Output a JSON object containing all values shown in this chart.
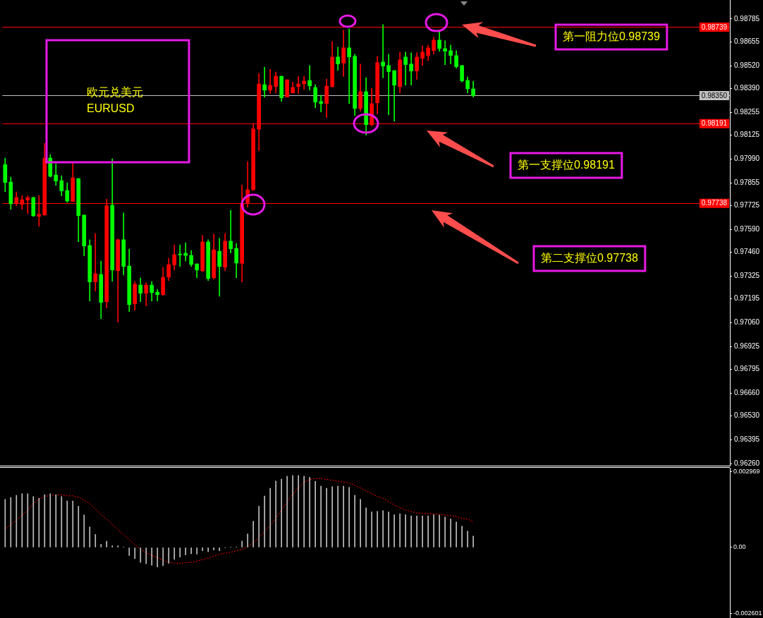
{
  "chart_data": [
    {
      "type": "candlestick",
      "categories": [
        null,
        null,
        null,
        null,
        null,
        null,
        null,
        null,
        null,
        null,
        null,
        null,
        null,
        null,
        null,
        null,
        null,
        null,
        null,
        null,
        null,
        null,
        null,
        null,
        null,
        null,
        null,
        null,
        null,
        null,
        null,
        null,
        null,
        null,
        null,
        null,
        null,
        null,
        null,
        null,
        null,
        null,
        null,
        null,
        null,
        null,
        null,
        null,
        null,
        null,
        null,
        null,
        null,
        null,
        null,
        null,
        null,
        null,
        null,
        null,
        null,
        null,
        null,
        null,
        null,
        null,
        null,
        null,
        null,
        null,
        null,
        null,
        null,
        null,
        null,
        null,
        null,
        null,
        null,
        null,
        null,
        null,
        null,
        null,
        null,
        null,
        null,
        null,
        null,
        null,
        null,
        null,
        null,
        null,
        null,
        null,
        null,
        null,
        null,
        null,
        null,
        null,
        null,
        null,
        null,
        null,
        null,
        null,
        null,
        null,
        null,
        null,
        null,
        null,
        null,
        null,
        null,
        null,
        null,
        null,
        null,
        null,
        null,
        null,
        null,
        null,
        null,
        null,
        null
      ],
      "ohlc": [
        [
          0.97958,
          0.97995,
          0.97804,
          0.97856
        ],
        [
          0.97859,
          0.97887,
          0.97704,
          0.97735
        ],
        [
          0.97738,
          0.97803,
          0.97724,
          0.97771
        ],
        [
          0.97732,
          0.97782,
          0.97704,
          0.97759
        ],
        [
          0.97756,
          0.97782,
          0.9768,
          0.97771
        ],
        [
          0.97771,
          0.97774,
          0.97663,
          0.97667
        ],
        [
          0.97664,
          0.97782,
          0.97608,
          0.97675
        ],
        [
          0.97671,
          0.98078,
          0.97671,
          0.97995
        ],
        [
          0.97995,
          0.98015,
          0.97887,
          0.97891
        ],
        [
          0.97899,
          0.97963,
          0.9784,
          0.97864
        ],
        [
          0.97867,
          0.97895,
          0.9778,
          0.97808
        ],
        [
          0.97811,
          0.97855,
          0.97744,
          0.97751
        ],
        [
          0.97748,
          0.97967,
          0.97748,
          0.97883
        ],
        [
          0.97879,
          0.97879,
          0.9752,
          0.97668
        ],
        [
          0.97671,
          0.97671,
          0.9744,
          0.97496
        ],
        [
          0.97498,
          0.97531,
          0.97183,
          0.97291
        ],
        [
          0.97291,
          0.97567,
          0.97239,
          0.97338
        ],
        [
          0.97334,
          0.9741,
          0.97083,
          0.97175
        ],
        [
          0.97179,
          0.97763,
          0.97143,
          0.97723
        ],
        [
          0.97727,
          0.97991,
          0.97295,
          0.97359
        ],
        [
          0.97355,
          0.97535,
          0.97063,
          0.97531
        ],
        [
          0.97531,
          0.97683,
          0.97331,
          0.97379
        ],
        [
          0.97382,
          0.97478,
          0.97123,
          0.97163
        ],
        [
          0.97167,
          0.97294,
          0.97131,
          0.97278
        ],
        [
          0.97274,
          0.97314,
          0.97179,
          0.97227
        ],
        [
          0.97227,
          0.97286,
          0.97155,
          0.97274
        ],
        [
          0.97274,
          0.97294,
          0.97183,
          0.97231
        ],
        [
          0.97234,
          0.9725,
          0.97183,
          0.97219
        ],
        [
          0.97219,
          0.97374,
          0.97215,
          0.97318
        ],
        [
          0.97319,
          0.97426,
          0.97299,
          0.9739
        ],
        [
          0.97387,
          0.97502,
          0.97359,
          0.97446
        ],
        [
          0.9745,
          0.97502,
          0.97379,
          0.97446
        ],
        [
          0.97454,
          0.97514,
          0.9741,
          0.97442
        ],
        [
          0.97442,
          0.9747,
          0.97379,
          0.97391
        ],
        [
          0.97394,
          0.97394,
          0.97315,
          0.97359
        ],
        [
          0.97354,
          0.97555,
          0.9735,
          0.97519
        ],
        [
          0.97519,
          0.97531,
          0.97299,
          0.97311
        ],
        [
          0.97315,
          0.97563,
          0.97307,
          0.97474
        ],
        [
          0.97466,
          0.97539,
          0.9721,
          0.97379
        ],
        [
          0.97375,
          0.97567,
          0.97355,
          0.97523
        ],
        [
          0.97523,
          0.97699,
          0.97456,
          0.9748
        ],
        [
          0.97482,
          0.9751,
          0.97315,
          0.97399
        ],
        [
          0.97397,
          0.97843,
          0.97291,
          0.97738
        ],
        [
          0.97742,
          0.97975,
          0.97716,
          0.97815
        ],
        [
          0.97815,
          0.98192,
          0.97811,
          0.98161
        ],
        [
          0.98159,
          0.98476,
          0.98037,
          0.98416
        ],
        [
          0.98412,
          0.98512,
          0.98341,
          0.98381
        ],
        [
          0.98381,
          0.985,
          0.98361,
          0.98408
        ],
        [
          0.98401,
          0.98484,
          0.98365,
          0.9846
        ],
        [
          0.9846,
          0.9846,
          0.98317,
          0.98337
        ],
        [
          0.98341,
          0.9844,
          0.98341,
          0.9844
        ],
        [
          0.98365,
          0.98426,
          0.98365,
          0.98396
        ],
        [
          0.98401,
          0.98458,
          0.98361,
          0.98416
        ],
        [
          0.98417,
          0.9846,
          0.98385,
          0.98432
        ],
        [
          0.98436,
          0.98521,
          0.98381,
          0.98405
        ],
        [
          0.98396,
          0.98412,
          0.98281,
          0.98313
        ],
        [
          0.98316,
          0.98352,
          0.98257,
          0.98305
        ],
        [
          0.98305,
          0.98444,
          0.98225,
          0.98404
        ],
        [
          0.98401,
          0.98657,
          0.98397,
          0.98569
        ],
        [
          0.98569,
          0.98625,
          0.98494,
          0.9853
        ],
        [
          0.98534,
          0.98721,
          0.98458,
          0.98621
        ],
        [
          0.98621,
          0.98729,
          0.98305,
          0.9857
        ],
        [
          0.98573,
          0.98585,
          0.98237,
          0.98277
        ],
        [
          0.98277,
          0.98529,
          0.98261,
          0.98372
        ],
        [
          0.98372,
          0.98452,
          0.98125,
          0.98185
        ],
        [
          0.98185,
          0.98392,
          0.98177,
          0.98304
        ],
        [
          0.98309,
          0.98573,
          0.98245,
          0.98537
        ],
        [
          0.98541,
          0.98753,
          0.9845,
          0.98518
        ],
        [
          0.98521,
          0.98585,
          0.98241,
          0.98486
        ],
        [
          0.98492,
          0.98492,
          0.98205,
          0.98409
        ],
        [
          0.98401,
          0.98597,
          0.98365,
          0.98553
        ],
        [
          0.98569,
          0.98597,
          0.98409,
          0.98526
        ],
        [
          0.98529,
          0.98593,
          0.98409,
          0.9849
        ],
        [
          0.9849,
          0.98593,
          0.98442,
          0.98569
        ],
        [
          0.98562,
          0.98633,
          0.98522,
          0.98597
        ],
        [
          0.98578,
          0.98637,
          0.9855,
          0.98621
        ],
        [
          0.98606,
          0.98681,
          0.98586,
          0.98665
        ],
        [
          0.98665,
          0.98713,
          0.98602,
          0.98618
        ],
        [
          0.98617,
          0.98661,
          0.98526,
          0.98602
        ],
        [
          0.98605,
          0.98637,
          0.9853,
          0.98578
        ],
        [
          0.98577,
          0.98605,
          0.98506,
          0.98514
        ],
        [
          0.98521,
          0.98521,
          0.98426,
          0.98434
        ],
        [
          0.98436,
          0.98456,
          0.98365,
          0.98389
        ],
        [
          0.98388,
          0.98432,
          0.98341,
          0.9835
        ],
        null,
        null,
        null,
        null,
        null,
        null,
        null,
        null,
        null,
        null,
        null,
        null,
        null,
        null,
        null,
        null,
        null,
        null,
        null,
        null,
        null,
        null,
        null,
        null,
        null,
        null,
        null,
        null,
        null,
        null,
        null,
        null,
        null,
        null,
        null,
        null,
        null,
        null,
        null,
        null,
        null,
        null,
        null,
        null,
        null
      ],
      "colors": [
        "#00ff00",
        "#00ff00",
        "#ff0000",
        "#ff0000",
        "#ff0000",
        "#00ff00",
        "#ff0000",
        "#ff0000",
        "#00ff00",
        "#00ff00",
        "#00ff00",
        "#00ff00",
        "#ff0000",
        "#00ff00",
        "#00ff00",
        "#00ff00",
        "#ff0000",
        "#00ff00",
        "#ff0000",
        "#00ff00",
        "#ff0000",
        "#00ff00",
        "#00ff00",
        "#ff0000",
        "#00ff00",
        "#ff0000",
        "#00ff00",
        "#00ff00",
        "#ff0000",
        "#ff0000",
        "#ff0000",
        "#00ff00",
        "#00ff00",
        "#00ff00",
        "#00ff00",
        "#ff0000",
        "#00ff00",
        "#ff0000",
        "#00ff00",
        "#ff0000",
        "#00ff00",
        "#00ff00",
        "#ff0000",
        "#ff0000",
        "#ff0000",
        "#ff0000",
        "#00ff00",
        "#ff0000",
        "#ff0000",
        "#00ff00",
        "#ff0000",
        "#ff0000",
        "#ff0000",
        "#ff0000",
        "#00ff00",
        "#00ff00",
        "#00ff00",
        "#ff0000",
        "#ff0000",
        "#00ff00",
        "#ff0000",
        "#00ff00",
        "#00ff00",
        "#ff0000",
        "#00ff00",
        "#ff0000",
        "#ff0000",
        "#00ff00",
        "#00ff00",
        "#00ff00",
        "#ff0000",
        "#00ff00",
        "#00ff00",
        "#ff0000",
        "#ff0000",
        "#ff0000",
        "#ff0000",
        "#00ff00",
        "#00ff00",
        "#00ff00",
        "#00ff00",
        "#00ff00",
        "#00ff00",
        "#00ff00",
        null,
        null,
        null,
        null,
        null,
        null,
        null,
        null,
        null,
        null,
        null,
        null,
        null,
        null,
        null,
        null,
        null,
        null,
        null,
        null,
        null,
        null,
        null,
        null,
        null,
        null,
        null,
        null,
        null,
        null,
        null,
        null,
        null,
        null,
        null,
        null,
        null,
        null,
        null,
        null,
        null,
        null,
        null,
        null,
        null
      ],
      "ylim": [
        0.96248,
        0.98893
      ],
      "yticks": [
        0.98785,
        0.98655,
        {
          "value": 0.9852,
          "label": "0.98520"
        },
        {
          "value": 0.9839,
          "label": "0.98390"
        },
        0.98255,
        0.98125,
        {
          "value": 0.9799,
          "label": "0.97990"
        },
        0.97855,
        0.97725,
        {
          "value": 0.9759,
          "label": "0.97590"
        },
        {
          "value": 0.9746,
          "label": "0.97460"
        },
        0.97325,
        0.97195,
        {
          "value": 0.9706,
          "label": "0.97060"
        },
        0.96925,
        0.96795,
        {
          "value": 0.9666,
          "label": "0.96660"
        },
        {
          "value": 0.9653,
          "label": "0.96530"
        },
        0.96395,
        {
          "value": 0.9626,
          "label": "0.96260"
        }
      ],
      "ref_lines": [
        {
          "axis": "y",
          "value": 0.98739,
          "label": "0.98739",
          "color": "#ff0000"
        },
        {
          "axis": "y",
          "value": 0.9835,
          "label": "0.98350",
          "color": "#c0c0c0"
        },
        {
          "axis": "y",
          "value": 0.98191,
          "label": "0.98191",
          "color": "#ff0000"
        },
        {
          "axis": "y",
          "value": 0.97738,
          "label": "0.97738",
          "color": "#ff0000"
        }
      ],
      "annotations": [
        "欧元兑美元",
        "EURUSD",
        "第一阻力位0.98739",
        "第一支撑位0.98191",
        "第二支撑位0.97738"
      ],
      "tick_labels": "y"
    },
    {
      "type": "bar",
      "categories": [
        null,
        null,
        null,
        null,
        null,
        null,
        null,
        null,
        null,
        null,
        null,
        null,
        null,
        null,
        null,
        null,
        null,
        null,
        null,
        null,
        null,
        null,
        null,
        null,
        null,
        null,
        null,
        null,
        null,
        null,
        null,
        null,
        null,
        null,
        null,
        null,
        null,
        null,
        null,
        null,
        null,
        null,
        null,
        null,
        null,
        null,
        null,
        null,
        null,
        null,
        null,
        null,
        null,
        null,
        null,
        null,
        null,
        null,
        null,
        null,
        null,
        null,
        null,
        null,
        null,
        null,
        null,
        null,
        null,
        null,
        null,
        null,
        null,
        null,
        null,
        null,
        null,
        null,
        null,
        null,
        null,
        null,
        null,
        null,
        null,
        null,
        null,
        null,
        null,
        null,
        null,
        null,
        null,
        null,
        null,
        null,
        null,
        null,
        null,
        null,
        null,
        null,
        null,
        null,
        null,
        null,
        null,
        null,
        null,
        null,
        null,
        null,
        null,
        null,
        null,
        null,
        null,
        null,
        null,
        null,
        null,
        null,
        null,
        null,
        null,
        null,
        null,
        null,
        null
      ],
      "series": [
        {
          "color": "#c0c0c0",
          "values": [
            0.00189,
            0.00197,
            0.00205,
            0.00211,
            0.00211,
            0.002,
            0.00193,
            0.00208,
            0.00211,
            0.00207,
            0.002,
            0.00183,
            0.00183,
            0.00162,
            0.00128,
            0.00081,
            0.00051,
            0.00012,
            0.00025,
            7e-05,
            7e-05,
            2e-05,
            -0.00032,
            -0.00044,
            -0.00059,
            -0.00064,
            -0.0007,
            -0.00077,
            -0.00072,
            -0.00062,
            -0.00047,
            -0.00038,
            -0.00029,
            -0.00025,
            -0.00026,
            -0.00013,
            -0.00017,
            -0.0001,
            -0.00013,
            -1e-05,
            1e-05,
            1e-05,
            0.00025,
            0.00053,
            0.00103,
            0.00162,
            0.00202,
            0.00233,
            0.00261,
            0.00269,
            0.0028,
            0.00283,
            0.00283,
            0.0028,
            0.00276,
            0.0026,
            0.00241,
            0.00233,
            0.00239,
            0.00241,
            0.00241,
            0.00236,
            0.00205,
            0.00189,
            0.00156,
            0.0014,
            0.00142,
            0.00145,
            0.0014,
            0.00129,
            0.00132,
            0.00129,
            0.00124,
            0.00124,
            0.00124,
            0.00124,
            0.00129,
            0.00127,
            0.0012,
            0.00112,
            0.001,
            0.00084,
            0.00064,
            0.00045,
            null,
            null,
            null,
            null,
            null,
            null,
            null,
            null,
            null,
            null,
            null,
            null,
            null,
            null,
            null,
            null,
            null,
            null,
            null,
            null,
            null,
            null,
            null,
            null,
            null,
            null,
            null,
            null,
            null,
            null,
            null,
            null,
            null,
            null,
            null,
            null,
            null,
            null,
            null,
            null,
            null,
            null,
            null,
            null,
            null
          ]
        },
        {
          "type": "line",
          "color": "#ff0000",
          "line_style": "dotted",
          "values": [
            0.00072,
            0.0009,
            0.00108,
            0.00127,
            0.00147,
            0.00173,
            0.0019,
            0.002,
            0.00205,
            0.00207,
            0.00207,
            0.00203,
            0.00203,
            0.00197,
            0.00186,
            0.00172,
            0.00151,
            0.00129,
            0.00111,
            0.0009,
            0.0007,
            0.00051,
            0.0003,
            0.00011,
            -7e-05,
            -0.0002,
            -0.00031,
            -0.00041,
            -0.0005,
            -0.00058,
            -0.00062,
            -0.00062,
            -0.0006,
            -0.00058,
            -0.00054,
            -0.00048,
            -0.00042,
            -0.00035,
            -0.00027,
            -0.00022,
            -0.00019,
            -0.00013,
            -7e-05,
            2e-05,
            0.00018,
            0.00039,
            0.00062,
            0.00086,
            0.00114,
            0.00147,
            0.00181,
            0.00209,
            0.00235,
            0.00257,
            0.00267,
            0.00271,
            0.00271,
            0.00268,
            0.00264,
            0.00261,
            0.00257,
            0.00254,
            0.00245,
            0.00234,
            0.00222,
            0.00211,
            0.00201,
            0.00193,
            0.0018,
            0.00167,
            0.00156,
            0.00148,
            0.00141,
            0.00136,
            0.00134,
            0.00133,
            0.00132,
            0.0013,
            0.00128,
            0.00125,
            0.00122,
            0.00114,
            0.00112,
            0.001,
            null,
            null,
            null,
            null,
            null,
            null,
            null,
            null,
            null,
            null,
            null,
            null,
            null,
            null,
            null,
            null,
            null,
            null,
            null,
            null,
            null,
            null,
            null,
            null,
            null,
            null,
            null,
            null,
            null,
            null,
            null,
            null,
            null,
            null,
            null,
            null,
            null,
            null,
            null,
            null,
            null,
            null,
            null,
            null,
            null
          ]
        }
      ],
      "ylim": [
        -0.002775,
        0.003135
      ],
      "yticks": [
        0.002969,
        {
          "value": 0,
          "label": "0.00"
        },
        -0.002601
      ],
      "tick_labels": "y"
    }
  ]
}
